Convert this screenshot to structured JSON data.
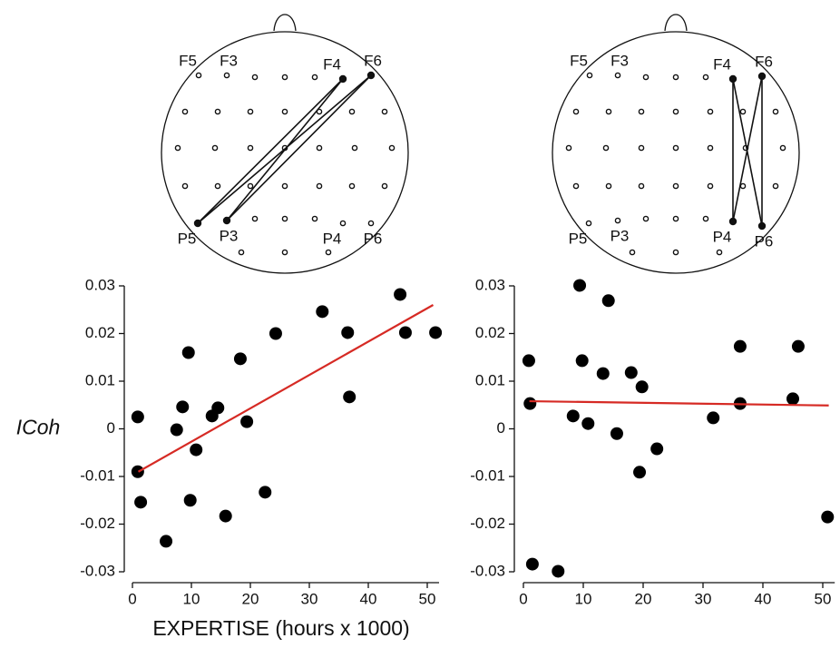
{
  "chart_data": [
    {
      "type": "scatter",
      "ylabel": "ICoh",
      "xlabel": "EXPERTISE (hours x 1000)",
      "color": "#000000",
      "x": [
        0.9,
        0.9,
        1.4,
        5.7,
        7.5,
        8.5,
        9.5,
        9.8,
        10.8,
        13.5,
        14.5,
        15.8,
        18.3,
        19.4,
        22.5,
        24.3,
        32.2,
        36.5,
        36.8,
        45.4,
        46.3,
        51.4
      ],
      "values": [
        0.0025,
        -0.009,
        -0.0154,
        -0.0236,
        -0.0002,
        0.0046,
        0.016,
        -0.015,
        -0.0044,
        0.0027,
        0.0044,
        -0.0183,
        0.0147,
        0.0015,
        -0.0133,
        0.02,
        0.0246,
        0.0202,
        0.0067,
        0.0282,
        0.0202,
        0.0202
      ],
      "trend": {
        "x": [
          1,
          51
        ],
        "values": [
          -0.009,
          0.026
        ],
        "color": "#d62a24"
      },
      "xlim": [
        0,
        52
      ],
      "ylim": [
        -0.03,
        0.03
      ],
      "xticks": [
        0,
        10,
        20,
        30,
        40,
        50
      ],
      "yticks": [
        -0.03,
        -0.02,
        -0.01,
        0,
        0.01,
        0.02,
        0.03
      ]
    },
    {
      "type": "scatter",
      "color": "#000000",
      "x": [
        0.9,
        1.1,
        1.5,
        5.8,
        9.4,
        8.3,
        9.8,
        10.8,
        14.2,
        13.3,
        15.6,
        18.0,
        19.8,
        19.4,
        22.3,
        31.7,
        36.2,
        36.2,
        45.0,
        45.9,
        50.8
      ],
      "values": [
        0.0143,
        0.0053,
        -0.0284,
        -0.0299,
        0.0301,
        0.0027,
        0.0143,
        0.0011,
        0.0269,
        0.0116,
        -0.001,
        0.0118,
        0.0088,
        -0.0091,
        -0.0042,
        0.0023,
        0.0173,
        0.0053,
        0.0063,
        0.0173,
        -0.0185
      ],
      "trend": {
        "x": [
          1,
          51
        ],
        "values": [
          0.0058,
          0.0049
        ],
        "color": "#d62a24"
      },
      "xlim": [
        0,
        52
      ],
      "ylim": [
        -0.03,
        0.03
      ],
      "xticks": [
        0,
        10,
        20,
        30,
        40,
        50
      ],
      "yticks": [
        -0.03,
        -0.02,
        -0.01,
        0,
        0.01,
        0.02,
        0.03
      ]
    }
  ],
  "head_diagrams": [
    {
      "labels": [
        "F5",
        "F3",
        "F4",
        "F6",
        "P5",
        "P3",
        "P4",
        "P6"
      ]
    },
    {
      "labels": [
        "F5",
        "F3",
        "F4",
        "F6",
        "P5",
        "P3",
        "P4",
        "P6"
      ]
    }
  ]
}
